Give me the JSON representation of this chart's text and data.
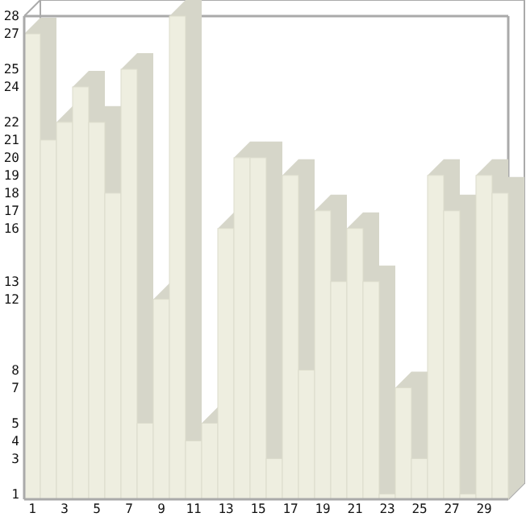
{
  "chart_data": {
    "type": "bar",
    "categories": [
      "1",
      null,
      "3",
      null,
      "5",
      null,
      "7",
      null,
      "9",
      null,
      "11",
      null,
      "13",
      null,
      "15",
      null,
      "17",
      null,
      "19",
      null,
      "21",
      null,
      "23",
      null,
      "25",
      null,
      "27",
      null,
      "29",
      null
    ],
    "values": [
      27,
      21,
      22,
      24,
      22,
      18,
      25,
      5,
      12,
      28,
      4,
      5,
      16,
      20,
      20,
      3,
      19,
      8,
      17,
      13,
      16,
      13,
      1,
      7,
      3,
      19,
      17,
      1,
      19,
      18
    ],
    "color": "#eeeee0",
    "ylim": [
      0.7,
      28
    ],
    "yticks": [
      1,
      3,
      4,
      5,
      7,
      8,
      12,
      13,
      16,
      17,
      18,
      19,
      20,
      21,
      22,
      24,
      25,
      27,
      28
    ],
    "grid": false
  }
}
